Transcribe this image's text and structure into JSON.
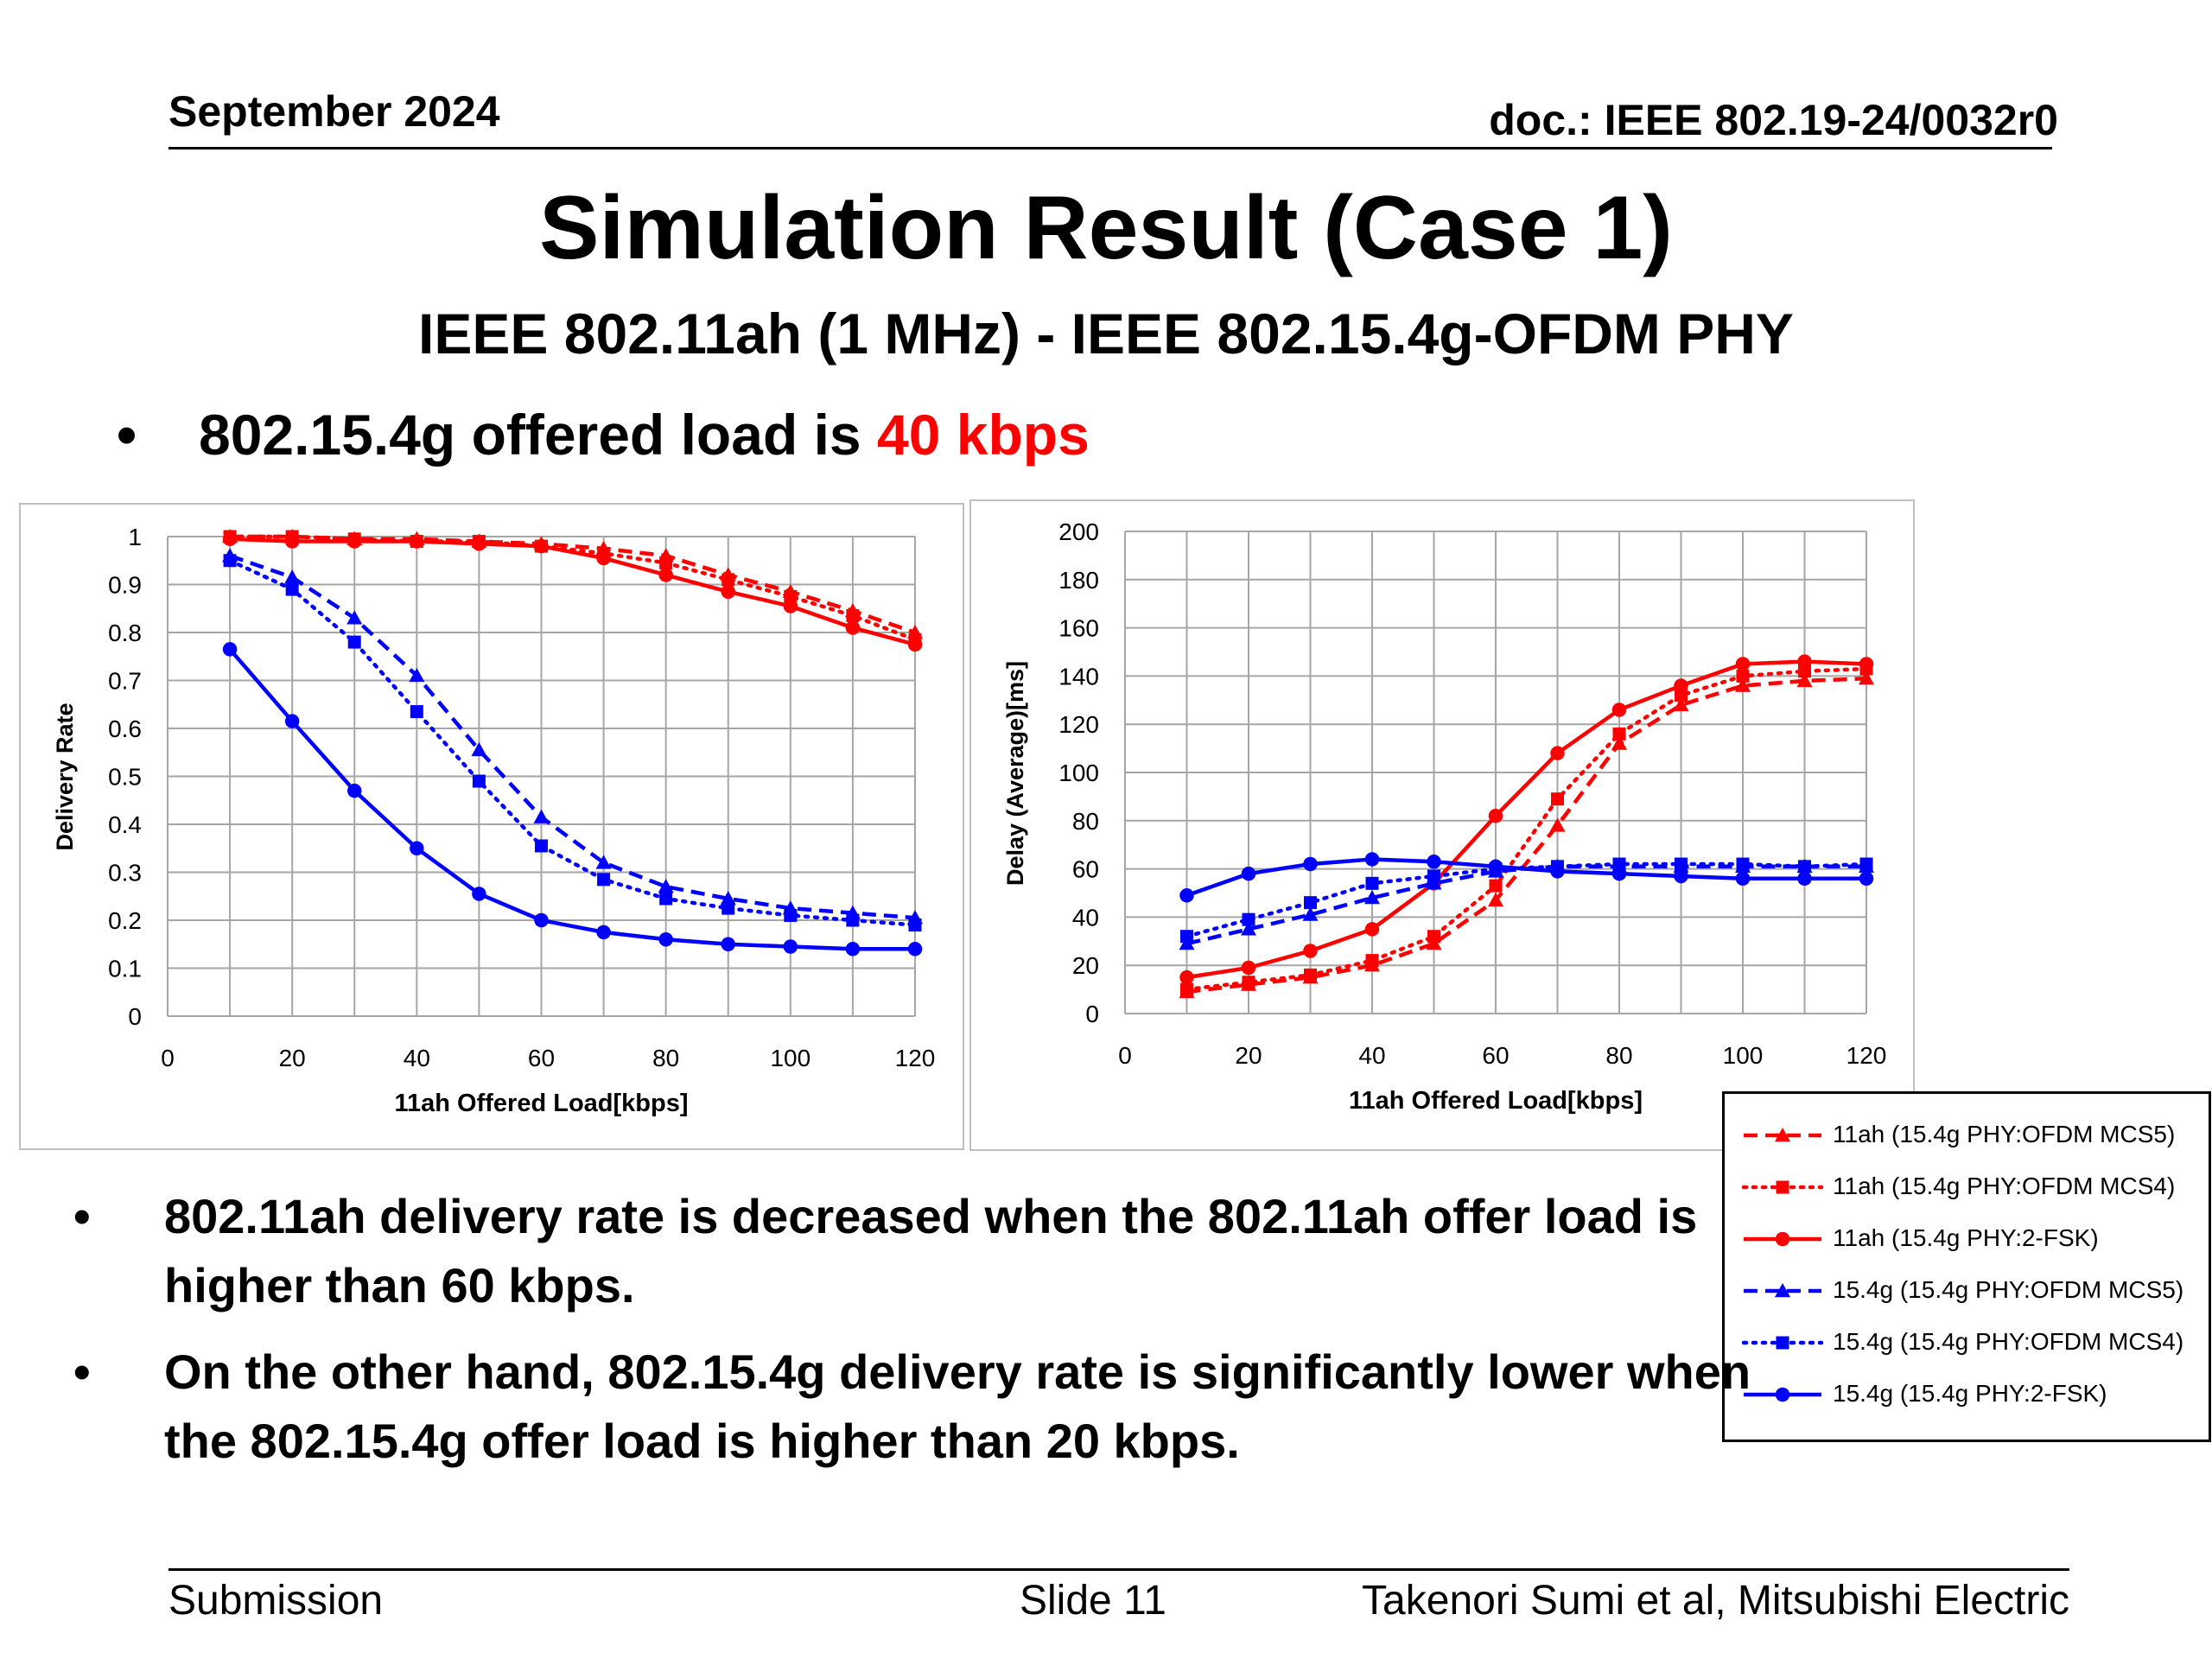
{
  "header": {
    "date": "September 2024",
    "doc": "doc.: IEEE 802.19-24/0032r0"
  },
  "title": "Simulation Result (Case 1)",
  "subtitle": "IEEE 802.11ah (1 MHz) -  IEEE 802.15.4g-OFDM PHY",
  "bullet1": {
    "dot": "•",
    "text": "802.15.4g offered load is ",
    "highlight": "40 kbps",
    "highlight_color": "#ff0000"
  },
  "bullets": [
    {
      "dot": "•",
      "text": "802.11ah delivery rate is decreased when the 802.11ah offer load is higher than 60 kbps."
    },
    {
      "dot": "•",
      "text": "On the other hand, 802.15.4g delivery rate is significantly lower when the 802.15.4g offer load is higher than 20 kbps."
    }
  ],
  "footer": {
    "submission": "Submission",
    "slide": "Slide 11",
    "author": "Takenori Sumi et al, Mitsubishi Electric"
  },
  "colors": {
    "red": "#ff0000",
    "blue": "#0000ff",
    "grid": "#a6a6a6"
  },
  "legend": [
    {
      "label": "11ah (15.4g PHY:OFDM MCS5)",
      "color": "#ff0000",
      "dash": "dashed",
      "marker": "triangle"
    },
    {
      "label": "11ah (15.4g PHY:OFDM MCS4)",
      "color": "#ff0000",
      "dash": "dotted",
      "marker": "square"
    },
    {
      "label": "11ah (15.4g PHY:2-FSK)",
      "color": "#ff0000",
      "dash": "solid",
      "marker": "circle"
    },
    {
      "label": "15.4g (15.4g PHY:OFDM MCS5)",
      "color": "#0000ff",
      "dash": "dashed",
      "marker": "triangle"
    },
    {
      "label": "15.4g (15.4g PHY:OFDM MCS4)",
      "color": "#0000ff",
      "dash": "dotted",
      "marker": "square"
    },
    {
      "label": "15.4g (15.4g PHY:2-FSK)",
      "color": "#0000ff",
      "dash": "solid",
      "marker": "circle"
    }
  ],
  "chart_data": [
    {
      "type": "line",
      "xlabel": "11ah Offered Load[kbps]",
      "ylabel": "Delivery Rate",
      "xlim": [
        0,
        120
      ],
      "ylim": [
        0,
        1
      ],
      "xticks": [
        0,
        20,
        40,
        60,
        80,
        100,
        120
      ],
      "yticks": [
        0,
        0.1,
        0.2,
        0.3,
        0.4,
        0.5,
        0.6,
        0.7,
        0.8,
        0.9,
        1
      ],
      "grid": true,
      "x": [
        10,
        20,
        30,
        40,
        50,
        60,
        70,
        80,
        90,
        100,
        110,
        120
      ],
      "series": [
        {
          "name": "11ah (15.4g PHY:OFDM MCS5)",
          "color": "#ff0000",
          "dash": "dashed",
          "marker": "triangle",
          "values": [
            1.0,
            1.0,
            0.995,
            0.995,
            0.99,
            0.985,
            0.975,
            0.96,
            0.92,
            0.885,
            0.845,
            0.8
          ]
        },
        {
          "name": "11ah (15.4g PHY:OFDM MCS4)",
          "color": "#ff0000",
          "dash": "dotted",
          "marker": "square",
          "values": [
            1.0,
            1.0,
            0.995,
            0.99,
            0.99,
            0.98,
            0.965,
            0.945,
            0.91,
            0.875,
            0.835,
            0.785
          ]
        },
        {
          "name": "11ah (15.4g PHY:2-FSK)",
          "color": "#ff0000",
          "dash": "solid",
          "marker": "circle",
          "values": [
            0.995,
            0.99,
            0.99,
            0.99,
            0.985,
            0.98,
            0.955,
            0.92,
            0.885,
            0.855,
            0.81,
            0.775
          ]
        },
        {
          "name": "15.4g (15.4g PHY:OFDM MCS5)",
          "color": "#0000ff",
          "dash": "dashed",
          "marker": "triangle",
          "values": [
            0.96,
            0.915,
            0.83,
            0.71,
            0.555,
            0.415,
            0.32,
            0.27,
            0.245,
            0.225,
            0.215,
            0.205
          ]
        },
        {
          "name": "15.4g (15.4g PHY:OFDM MCS4)",
          "color": "#0000ff",
          "dash": "dotted",
          "marker": "square",
          "values": [
            0.95,
            0.89,
            0.78,
            0.635,
            0.49,
            0.355,
            0.285,
            0.245,
            0.225,
            0.21,
            0.2,
            0.19
          ]
        },
        {
          "name": "15.4g (15.4g PHY:2-FSK)",
          "color": "#0000ff",
          "dash": "solid",
          "marker": "circle",
          "values": [
            0.765,
            0.615,
            0.47,
            0.35,
            0.255,
            0.2,
            0.175,
            0.16,
            0.15,
            0.145,
            0.14,
            0.14
          ]
        }
      ]
    },
    {
      "type": "line",
      "xlabel": "11ah Offered Load[kbps]",
      "ylabel": "Delay (Average)[ms]",
      "xlim": [
        0,
        120
      ],
      "ylim": [
        0,
        200
      ],
      "xticks": [
        0,
        20,
        40,
        60,
        80,
        100,
        120
      ],
      "yticks": [
        0,
        20,
        40,
        60,
        80,
        100,
        120,
        140,
        160,
        180,
        200
      ],
      "grid": true,
      "x": [
        10,
        20,
        30,
        40,
        50,
        60,
        70,
        80,
        90,
        100,
        110,
        120
      ],
      "series": [
        {
          "name": "11ah (15.4g PHY:OFDM MCS5)",
          "color": "#ff0000",
          "dash": "dashed",
          "marker": "triangle",
          "values": [
            9,
            12,
            15,
            20,
            29,
            47,
            78,
            112,
            128,
            136,
            138,
            139
          ]
        },
        {
          "name": "11ah (15.4g PHY:OFDM MCS4)",
          "color": "#ff0000",
          "dash": "dotted",
          "marker": "square",
          "values": [
            10,
            13,
            16,
            22,
            32,
            53,
            89,
            116,
            132,
            140,
            142,
            143
          ]
        },
        {
          "name": "11ah (15.4g PHY:2-FSK)",
          "color": "#ff0000",
          "dash": "solid",
          "marker": "circle",
          "values": [
            15,
            19,
            26,
            35,
            54,
            82,
            108,
            126,
            136,
            145,
            146,
            145
          ]
        },
        {
          "name": "15.4g (15.4g PHY:OFDM MCS5)",
          "color": "#0000ff",
          "dash": "dashed",
          "marker": "triangle",
          "values": [
            29,
            35,
            41,
            48,
            54,
            59,
            61,
            61,
            61,
            61,
            61,
            61
          ]
        },
        {
          "name": "15.4g (15.4g PHY:OFDM MCS4)",
          "color": "#0000ff",
          "dash": "dotted",
          "marker": "square",
          "values": [
            32,
            39,
            46,
            54,
            57,
            60,
            61,
            62,
            62,
            62,
            61,
            62
          ]
        },
        {
          "name": "15.4g (15.4g PHY:2-FSK)",
          "color": "#0000ff",
          "dash": "solid",
          "marker": "circle",
          "values": [
            49,
            58,
            62,
            64,
            63,
            61,
            59,
            58,
            57,
            56,
            56,
            56
          ]
        }
      ]
    }
  ]
}
